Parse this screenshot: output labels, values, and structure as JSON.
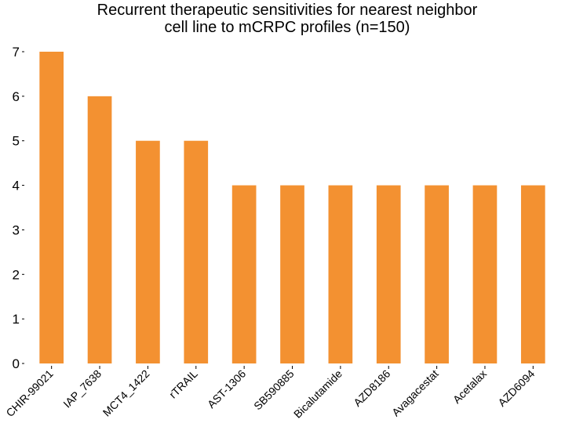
{
  "chart_data": {
    "type": "bar",
    "title": [
      "Recurrent therapeutic sensitivities for nearest neighbor",
      "cell line to mCRPC profiles (n=150)"
    ],
    "categories": [
      "CHIR-99021",
      "IAP_7638",
      "MCT4_1422",
      "rTRAIL",
      "AST-1306",
      "SB590885",
      "Bicalutamide",
      "AZD8186",
      "Avagacestat",
      "Acetalax",
      "AZD6094"
    ],
    "values": [
      7,
      6,
      5,
      5,
      4,
      4,
      4,
      4,
      4,
      4,
      4
    ],
    "yticks": [
      "0",
      "1",
      "2",
      "3",
      "4",
      "5",
      "6",
      "7"
    ],
    "ylim": [
      0,
      7
    ],
    "bar_color": "#f39131",
    "grid": false,
    "legend": "none"
  }
}
